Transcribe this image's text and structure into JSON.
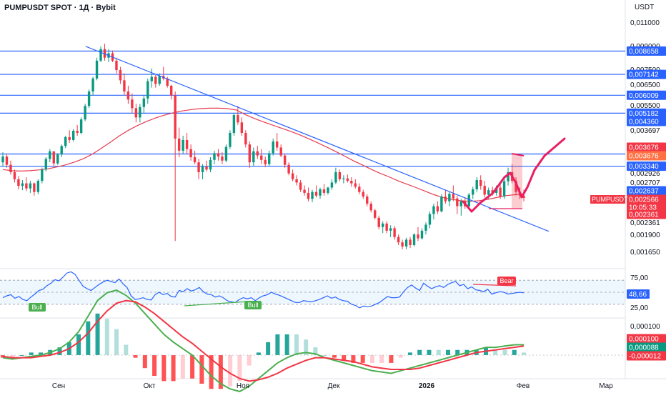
{
  "header": {
    "title": "PUMPUSDT SPOT · 1Д · Bybit",
    "currency": "USDT"
  },
  "price_axis": {
    "ticks": [
      "0,011000",
      "0,009000",
      "0,007500",
      "0,006500",
      "0,005500",
      "0,004360",
      "0,003697",
      "0,002926",
      "0,002707",
      "0,002361",
      "0,001900",
      "0,001650"
    ],
    "level_labels": [
      "0,008658",
      "0,007142",
      "0,006009",
      "0,005182",
      "0,003697",
      "0,003340"
    ],
    "tags": [
      {
        "label": "0,004360",
        "color": "#2962ff"
      },
      {
        "label": "0,003676",
        "color": "#f23645"
      },
      {
        "label": "0,003676",
        "color": "#ff7043"
      },
      {
        "label": "0,002637",
        "color": "#2962ff"
      },
      {
        "label": "0,002566",
        "color": "#f23645"
      },
      {
        "label": "10:05:33",
        "color": "#f23645"
      },
      {
        "label": "0,002361",
        "color": "#f23645"
      }
    ],
    "symbol_tag": "PUMPUSDT"
  },
  "time_axis": [
    "Сен",
    "Окт",
    "Ноя",
    "Дек",
    "2026",
    "Фев",
    "Мар"
  ],
  "rsi": {
    "ticks": [
      "75,00",
      "25,00"
    ],
    "value": "48,66",
    "markers": [
      "Bull",
      "Bull",
      "Bear"
    ]
  },
  "macd": {
    "ticks": [
      "0,000100"
    ],
    "tags": [
      {
        "label": "0,000100",
        "color": "#f23645"
      },
      {
        "label": "0,000088",
        "color": "#089981"
      },
      {
        "label": "-0,000012",
        "color": "#f23645"
      }
    ]
  },
  "chart_data": {
    "type": "candlestick",
    "symbol": "PUMPUSDT",
    "interval": "1Д",
    "ohlc_approx": [
      [
        0.00345,
        0.00375,
        0.00335,
        0.00362
      ],
      [
        0.00362,
        0.0037,
        0.0033,
        0.00338
      ],
      [
        0.00338,
        0.0035,
        0.00312,
        0.00318
      ],
      [
        0.00318,
        0.00325,
        0.00292,
        0.003
      ],
      [
        0.003,
        0.00308,
        0.00276,
        0.00284
      ],
      [
        0.00284,
        0.00298,
        0.00274,
        0.0029
      ],
      [
        0.0029,
        0.00305,
        0.00272,
        0.00278
      ],
      [
        0.00278,
        0.00296,
        0.00268,
        0.0029
      ],
      [
        0.0029,
        0.00292,
        0.00262,
        0.0027
      ],
      [
        0.0027,
        0.003,
        0.00265,
        0.00296
      ],
      [
        0.00296,
        0.0033,
        0.0029,
        0.00325
      ],
      [
        0.00325,
        0.0036,
        0.0032,
        0.00355
      ],
      [
        0.00355,
        0.00385,
        0.00345,
        0.00378
      ],
      [
        0.00378,
        0.00372,
        0.00335,
        0.00342
      ],
      [
        0.00342,
        0.00372,
        0.00338,
        0.00368
      ],
      [
        0.00368,
        0.004,
        0.0036,
        0.00395
      ],
      [
        0.00395,
        0.0043,
        0.00388,
        0.00425
      ],
      [
        0.00425,
        0.0045,
        0.00405,
        0.00415
      ],
      [
        0.00415,
        0.00455,
        0.0041,
        0.00448
      ],
      [
        0.00448,
        0.0047,
        0.0043,
        0.0044
      ],
      [
        0.0044,
        0.005,
        0.00435,
        0.00492
      ],
      [
        0.00492,
        0.0056,
        0.00485,
        0.0055
      ],
      [
        0.0055,
        0.0063,
        0.0054,
        0.0062
      ],
      [
        0.0062,
        0.007,
        0.006,
        0.0069
      ],
      [
        0.0069,
        0.0082,
        0.0068,
        0.008
      ],
      [
        0.008,
        0.009,
        0.0079,
        0.0088
      ],
      [
        0.0088,
        0.0092,
        0.008,
        0.0082
      ],
      [
        0.0082,
        0.0088,
        0.0079,
        0.0085
      ],
      [
        0.0085,
        0.0087,
        0.0079,
        0.008
      ],
      [
        0.008,
        0.0082,
        0.0072,
        0.0074
      ],
      [
        0.0074,
        0.0076,
        0.0066,
        0.0068
      ],
      [
        0.0068,
        0.0072,
        0.006,
        0.0062
      ],
      [
        0.0062,
        0.0065,
        0.0056,
        0.0058
      ],
      [
        0.0058,
        0.0061,
        0.0052,
        0.0054
      ],
      [
        0.0054,
        0.0056,
        0.0048,
        0.005
      ],
      [
        0.005,
        0.0056,
        0.0048,
        0.00545
      ],
      [
        0.00545,
        0.006,
        0.0052,
        0.00585
      ],
      [
        0.00585,
        0.0069,
        0.0056,
        0.00675
      ],
      [
        0.00675,
        0.0075,
        0.0064,
        0.007
      ],
      [
        0.007,
        0.0071,
        0.0064,
        0.0066
      ],
      [
        0.0066,
        0.0072,
        0.0065,
        0.00705
      ],
      [
        0.00705,
        0.0076,
        0.0068,
        0.0069
      ],
      [
        0.0069,
        0.007,
        0.0064,
        0.0065
      ],
      [
        0.0065,
        0.00655,
        0.0058,
        0.006
      ],
      [
        0.006,
        0.0062,
        0.0018,
        0.0042
      ],
      [
        0.0042,
        0.0046,
        0.0036,
        0.0038
      ],
      [
        0.0038,
        0.0043,
        0.0037,
        0.00415
      ],
      [
        0.00415,
        0.0044,
        0.0037,
        0.00385
      ],
      [
        0.00385,
        0.004,
        0.0035,
        0.0036
      ],
      [
        0.0036,
        0.0038,
        0.0034,
        0.00345
      ],
      [
        0.00345,
        0.00355,
        0.003,
        0.00318
      ],
      [
        0.00318,
        0.0034,
        0.003,
        0.00333
      ],
      [
        0.00333,
        0.0035,
        0.0032,
        0.00325
      ],
      [
        0.00325,
        0.0036,
        0.00318,
        0.00352
      ],
      [
        0.00352,
        0.0038,
        0.0034,
        0.00372
      ],
      [
        0.00372,
        0.00385,
        0.0035,
        0.00362
      ],
      [
        0.00362,
        0.00375,
        0.0034,
        0.0035
      ],
      [
        0.0035,
        0.004,
        0.00345,
        0.00392
      ],
      [
        0.00392,
        0.0045,
        0.00385,
        0.0044
      ],
      [
        0.0044,
        0.0052,
        0.0043,
        0.0051
      ],
      [
        0.0051,
        0.0055,
        0.0047,
        0.0048
      ],
      [
        0.0048,
        0.005,
        0.0043,
        0.0044
      ],
      [
        0.0044,
        0.0045,
        0.0039,
        0.004
      ],
      [
        0.004,
        0.0041,
        0.0033,
        0.00345
      ],
      [
        0.00345,
        0.0039,
        0.00335,
        0.00378
      ],
      [
        0.00378,
        0.00395,
        0.00355,
        0.00365
      ],
      [
        0.00365,
        0.00385,
        0.0034,
        0.00352
      ],
      [
        0.00352,
        0.00362,
        0.00332,
        0.0034
      ],
      [
        0.0034,
        0.0038,
        0.00335,
        0.00372
      ],
      [
        0.00372,
        0.0042,
        0.00365,
        0.0041
      ],
      [
        0.0041,
        0.0044,
        0.0038,
        0.0039
      ],
      [
        0.0039,
        0.004,
        0.0036,
        0.00365
      ],
      [
        0.00365,
        0.0037,
        0.0033,
        0.00338
      ],
      [
        0.00338,
        0.00345,
        0.0031,
        0.00315
      ],
      [
        0.00315,
        0.00325,
        0.00295,
        0.003
      ],
      [
        0.003,
        0.0031,
        0.00285,
        0.00292
      ],
      [
        0.00292,
        0.00298,
        0.0027,
        0.00275
      ],
      [
        0.00275,
        0.00285,
        0.00262,
        0.00268
      ],
      [
        0.00268,
        0.0028,
        0.0025,
        0.00255
      ],
      [
        0.00255,
        0.00275,
        0.00248,
        0.0027
      ],
      [
        0.0027,
        0.00285,
        0.00258,
        0.00262
      ],
      [
        0.00262,
        0.0028,
        0.00255,
        0.00276
      ],
      [
        0.00276,
        0.00288,
        0.00262,
        0.00268
      ],
      [
        0.00268,
        0.00282,
        0.00264,
        0.0028
      ],
      [
        0.0028,
        0.003,
        0.00275,
        0.00292
      ],
      [
        0.00292,
        0.0033,
        0.00288,
        0.00318
      ],
      [
        0.00318,
        0.00325,
        0.00295,
        0.003
      ],
      [
        0.003,
        0.0031,
        0.0029,
        0.00302
      ],
      [
        0.00302,
        0.00312,
        0.00292,
        0.00296
      ],
      [
        0.00296,
        0.00305,
        0.00282,
        0.0029
      ],
      [
        0.0029,
        0.003,
        0.00278,
        0.00282
      ],
      [
        0.00282,
        0.0029,
        0.00265,
        0.0027
      ],
      [
        0.0027,
        0.00275,
        0.00255,
        0.0026
      ],
      [
        0.0026,
        0.00265,
        0.0024,
        0.00245
      ],
      [
        0.00245,
        0.0025,
        0.00228,
        0.00232
      ],
      [
        0.00232,
        0.00235,
        0.00215,
        0.00218
      ],
      [
        0.00218,
        0.00222,
        0.00198,
        0.00202
      ],
      [
        0.00202,
        0.00212,
        0.00192,
        0.00208
      ],
      [
        0.00208,
        0.00212,
        0.00192,
        0.00196
      ],
      [
        0.00196,
        0.00205,
        0.00186,
        0.002
      ],
      [
        0.002,
        0.00204,
        0.00182,
        0.00186
      ],
      [
        0.00186,
        0.0019,
        0.00174,
        0.00178
      ],
      [
        0.00178,
        0.00182,
        0.00168,
        0.00172
      ],
      [
        0.00172,
        0.00185,
        0.00168,
        0.00182
      ],
      [
        0.00182,
        0.00186,
        0.0017,
        0.00174
      ],
      [
        0.00174,
        0.00192,
        0.00172,
        0.0019
      ],
      [
        0.0019,
        0.00202,
        0.0018,
        0.00184
      ],
      [
        0.00184,
        0.002,
        0.00182,
        0.00196
      ],
      [
        0.00196,
        0.0021,
        0.0019,
        0.00206
      ],
      [
        0.00206,
        0.0023,
        0.002,
        0.00225
      ],
      [
        0.00225,
        0.00245,
        0.00215,
        0.0024
      ],
      [
        0.0024,
        0.0025,
        0.00225,
        0.0023
      ],
      [
        0.0023,
        0.00265,
        0.00228,
        0.0026
      ],
      [
        0.0026,
        0.00275,
        0.00245,
        0.0025
      ],
      [
        0.0025,
        0.0027,
        0.0024,
        0.00266
      ],
      [
        0.00266,
        0.00285,
        0.0025,
        0.00256
      ],
      [
        0.00256,
        0.00262,
        0.00225,
        0.0024
      ],
      [
        0.0024,
        0.00255,
        0.00222,
        0.0025
      ],
      [
        0.0025,
        0.00258,
        0.00235,
        0.0024
      ],
      [
        0.0024,
        0.00268,
        0.00236,
        0.00264
      ],
      [
        0.00264,
        0.00282,
        0.00255,
        0.00276
      ],
      [
        0.00276,
        0.00305,
        0.0027,
        0.00298
      ],
      [
        0.00298,
        0.0031,
        0.00275,
        0.00284
      ],
      [
        0.00284,
        0.00296,
        0.00258,
        0.00264
      ],
      [
        0.00264,
        0.0028,
        0.00255,
        0.00274
      ],
      [
        0.00274,
        0.00282,
        0.00262,
        0.00268
      ],
      [
        0.00268,
        0.00285,
        0.00262,
        0.0028
      ],
      [
        0.0028,
        0.0029,
        0.00255,
        0.0026
      ],
      [
        0.0026,
        0.003,
        0.00255,
        0.00295
      ],
      [
        0.00295,
        0.0033,
        0.00285,
        0.00318
      ],
      [
        0.00318,
        0.0034,
        0.0029,
        0.00296
      ],
      [
        0.00296,
        0.00305,
        0.00262,
        0.0027
      ],
      [
        0.0027,
        0.0028,
        0.00255,
        0.00262
      ],
      [
        0.00262,
        0.00275,
        0.0025,
        0.00257
      ]
    ],
    "ma": [
      0.00325,
      0.00322,
      0.00321,
      0.00322,
      0.00324,
      0.00327,
      0.00332,
      0.00338,
      0.00346,
      0.00356,
      0.0037,
      0.00388,
      0.00408,
      0.0043,
      0.0045,
      0.00468,
      0.00484,
      0.00498,
      0.0051,
      0.0052,
      0.00528,
      0.00534,
      0.00538,
      0.0054,
      0.0054,
      0.00538,
      0.00532,
      0.00512,
      0.00496,
      0.00482,
      0.0047,
      0.00458,
      0.00446,
      0.00434,
      0.0042,
      0.00406,
      0.00392,
      0.00378,
      0.00364,
      0.0035,
      0.00338,
      0.00326,
      0.00315,
      0.00306,
      0.00296,
      0.00288,
      0.0028,
      0.00272,
      0.00264,
      0.00258,
      0.00254,
      0.00251,
      0.0025,
      0.00251,
      0.00254,
      0.00258,
      0.00262,
      0.00264,
      0.00266
    ],
    "levels": [
      0.008658,
      0.007142,
      0.006009,
      0.005182,
      0.003697,
      0.00334
    ],
    "trendline": {
      "from": 0.009,
      "to": 0.00195
    },
    "rsi": [
      41,
      44,
      46,
      40,
      43,
      38,
      36,
      42,
      47,
      53,
      55,
      61,
      65,
      71,
      69,
      75,
      82,
      84,
      80,
      70,
      60,
      56,
      53,
      58,
      63,
      67,
      70,
      68,
      66,
      72,
      64,
      58,
      44,
      38,
      39,
      41,
      38,
      37,
      46,
      50,
      46,
      48,
      43,
      42,
      53,
      51,
      56,
      52,
      54,
      58,
      51,
      47,
      46,
      42,
      44,
      41,
      36,
      34,
      33,
      38,
      41,
      39,
      41,
      36,
      41,
      44,
      46,
      50,
      47,
      45,
      42,
      39,
      36,
      33,
      33,
      36,
      35,
      34,
      36,
      38,
      41,
      44,
      40,
      42,
      38,
      36,
      35,
      30,
      28,
      24,
      27,
      26,
      27,
      30,
      33,
      38,
      43,
      41,
      41,
      42,
      51,
      58,
      62,
      57,
      53,
      65,
      60,
      56,
      59,
      61,
      58,
      63,
      66,
      68,
      61,
      63,
      56,
      59,
      54,
      53,
      51,
      55,
      47,
      49,
      51,
      50,
      47,
      48,
      49,
      50,
      49
    ],
    "macd": {
      "line": [
        -2e-05,
        -3e-05,
        -2e-05,
        -1e-05,
        0.0,
        2e-05,
        5e-05,
        0.0001,
        0.00018,
        0.0003,
        0.00042,
        0.00048,
        0.0005,
        0.00046,
        0.0004,
        0.00032,
        0.00024,
        0.00016,
        0.0001,
        5e-05,
        0.0,
        -8e-05,
        -0.00016,
        -0.00022,
        -0.00026,
        -0.00028,
        -0.00024,
        -0.00018,
        -0.00012,
        -6e-05,
        -2e-05,
        1e-05,
        2e-05,
        1e-05,
        -2e-05,
        -4e-05,
        -6e-05,
        -8e-05,
        -0.0001,
        -0.00012,
        -0.00013,
        -0.00014,
        -0.00012,
        -0.0001,
        -8e-05,
        -6e-05,
        -4e-05,
        -2e-05,
        0.0,
        2e-05,
        4e-05,
        6e-05,
        6e-05,
        7e-05,
        8e-05,
        8e-05
      ],
      "signal": [
        -1e-05,
        -2e-05,
        -2e-05,
        -2e-05,
        -1e-05,
        0.0,
        2e-05,
        5e-05,
        0.0001,
        0.00017,
        0.00026,
        0.00034,
        0.0004,
        0.00042,
        0.00041,
        0.00037,
        0.00032,
        0.00026,
        0.0002,
        0.00014,
        9e-05,
        3e-05,
        -3e-05,
        -9e-05,
        -0.00014,
        -0.00018,
        -0.0002,
        -0.00019,
        -0.00017,
        -0.00014,
        -0.0001,
        -7e-05,
        -4e-05,
        -2e-05,
        -2e-05,
        -3e-05,
        -4e-05,
        -5e-05,
        -7e-05,
        -9e-05,
        -0.0001,
        -0.00011,
        -0.00011,
        -0.00011,
        -0.0001,
        -8e-05,
        -6e-05,
        -4e-05,
        -2e-05,
        0.0,
        2e-05,
        3e-05,
        4e-05,
        5e-05,
        6e-05,
        7e-05
      ]
    }
  }
}
